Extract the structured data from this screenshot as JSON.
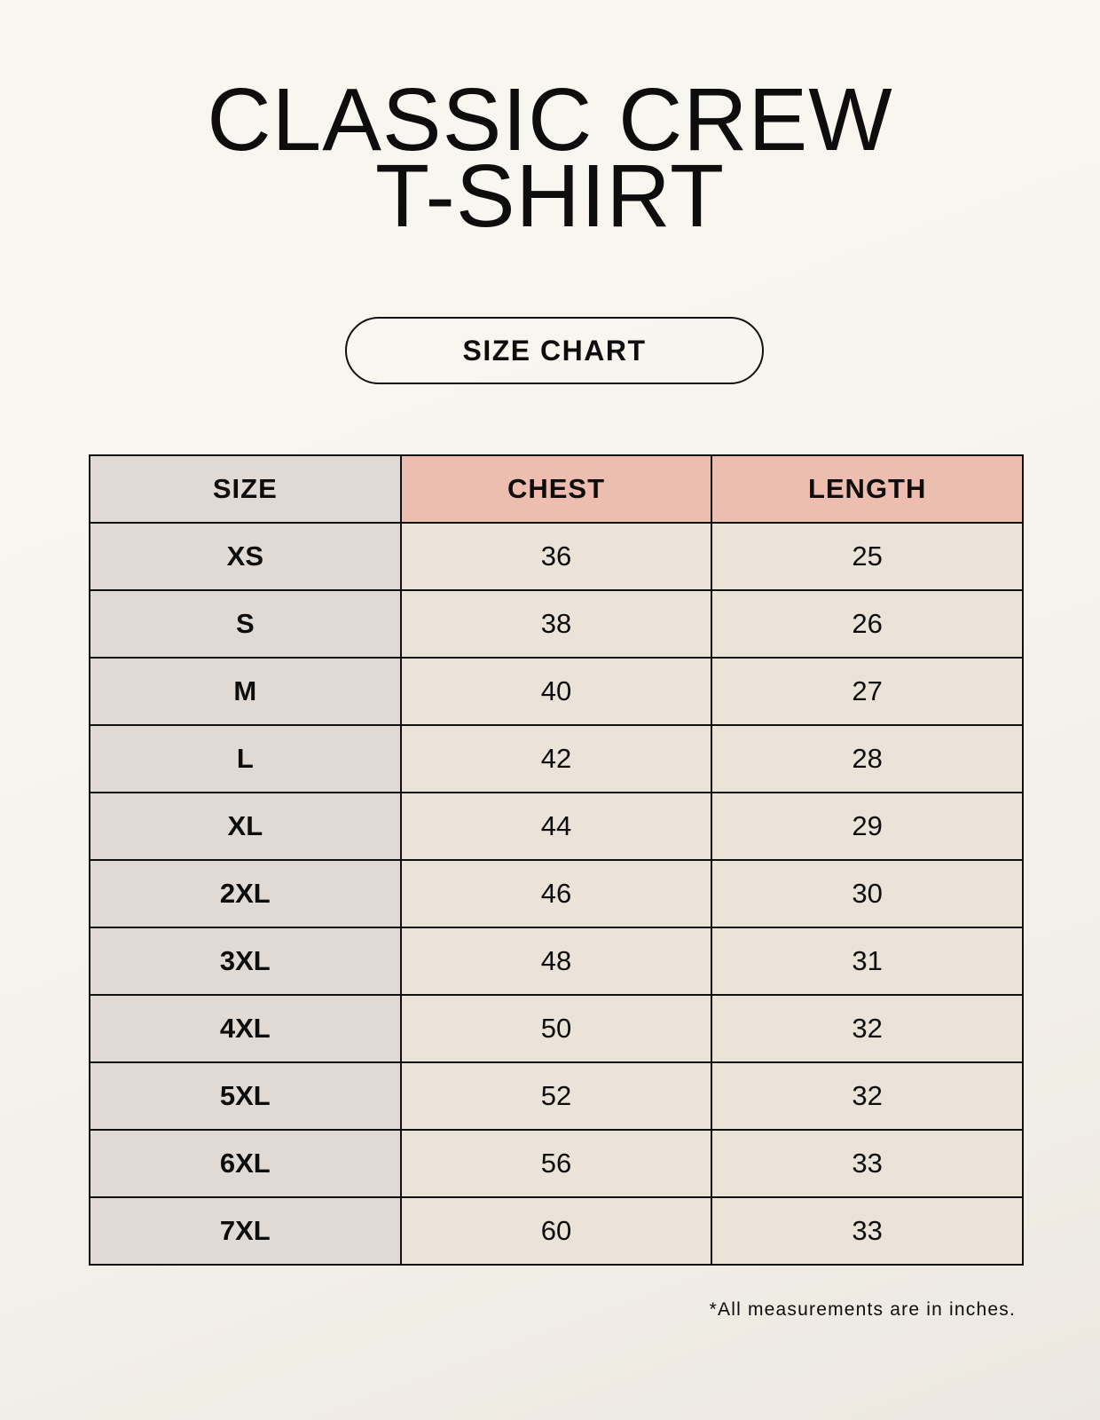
{
  "title": {
    "line1": "CLASSIC CREW",
    "line2": "T-SHIRT"
  },
  "badge": "SIZE CHART",
  "table": {
    "headers": [
      "SIZE",
      "CHEST",
      "LENGTH"
    ],
    "rows": [
      [
        "XS",
        "36",
        "25"
      ],
      [
        "S",
        "38",
        "26"
      ],
      [
        "M",
        "40",
        "27"
      ],
      [
        "L",
        "42",
        "28"
      ],
      [
        "XL",
        "44",
        "29"
      ],
      [
        "2XL",
        "46",
        "30"
      ],
      [
        "3XL",
        "48",
        "31"
      ],
      [
        "4XL",
        "50",
        "32"
      ],
      [
        "5XL",
        "52",
        "32"
      ],
      [
        "6XL",
        "56",
        "33"
      ],
      [
        "7XL",
        "60",
        "33"
      ]
    ]
  },
  "footnote": "*All measurements are in inches.",
  "colors": {
    "size_column": "#e1d9d3",
    "measure_header": "#edbdb0",
    "value_cells": "#ebe3d8"
  }
}
